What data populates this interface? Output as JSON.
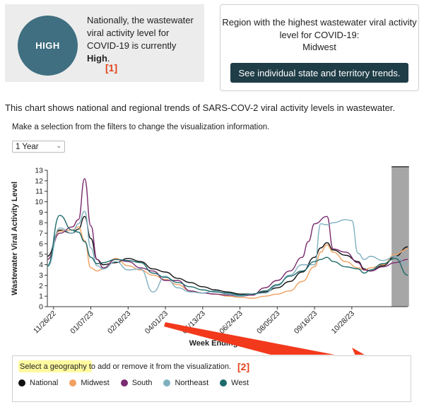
{
  "summary": {
    "level": "HIGH",
    "text_prefix": "Nationally, the wastewater viral activity level for COVID-19 is currently",
    "text_level": "High",
    "text_suffix": ".",
    "annotation": "[1]"
  },
  "region": {
    "text": "Region with the highest wastewater viral activity level for COVID-19:",
    "name": "Midwest",
    "button": "See individual state and territory trends."
  },
  "chart_desc": "This chart shows national and regional trends of SARS-COV-2 viral activity levels in wastewater.",
  "filter_text": "Make a selection from the filters to change the visualization information.",
  "period": "1 Year",
  "legend": {
    "hint": "Select a geography to add or remove it from the visualization.",
    "annotation": "[2]",
    "items": [
      {
        "label": "National",
        "color": "#111111"
      },
      {
        "label": "Midwest",
        "color": "#f0a060"
      },
      {
        "label": "South",
        "color": "#7a2a6e"
      },
      {
        "label": "Northeast",
        "color": "#7fb0c0"
      },
      {
        "label": "West",
        "color": "#1e6b6b"
      }
    ]
  },
  "chart_data": {
    "type": "line",
    "ylabel": "Wastewater Viral Activity Level",
    "xlabel": "Week Ending",
    "ylim": [
      0,
      13
    ],
    "yticks": [
      0,
      1,
      2,
      3,
      4,
      5,
      6,
      7,
      8,
      9,
      10,
      11,
      12,
      13
    ],
    "x_start": "11/26/22",
    "x_end": "11/25/23",
    "xticks": [
      "11/26/22",
      "01/07/23",
      "02/18/23",
      "04/01/23",
      "05/13/23",
      "06/24/23",
      "08/05/23",
      "09/16/23",
      "10/28/23"
    ],
    "highlight_band": "last week",
    "series": [
      {
        "name": "National",
        "color": "#111111",
        "values": [
          [
            0,
            4.8
          ],
          [
            2,
            7.3
          ],
          [
            4,
            7.0
          ],
          [
            5,
            7.4
          ],
          [
            6,
            8.6
          ],
          [
            7,
            6.5
          ],
          [
            8,
            4.5
          ],
          [
            9,
            4.0
          ],
          [
            11,
            4.2
          ],
          [
            13,
            4.6
          ],
          [
            15,
            4.3
          ],
          [
            17,
            3.6
          ],
          [
            19,
            3.3
          ],
          [
            21,
            2.7
          ],
          [
            23,
            2.3
          ],
          [
            25,
            1.9
          ],
          [
            27,
            1.6
          ],
          [
            29,
            1.4
          ],
          [
            31,
            1.2
          ],
          [
            33,
            1.2
          ],
          [
            35,
            1.4
          ],
          [
            37,
            1.8
          ],
          [
            39,
            2.4
          ],
          [
            41,
            3.3
          ],
          [
            43,
            4.7
          ],
          [
            44,
            5.6
          ],
          [
            45,
            6.1
          ],
          [
            46,
            5.4
          ],
          [
            48,
            4.9
          ],
          [
            50,
            4.3
          ],
          [
            51,
            3.6
          ],
          [
            52,
            3.4
          ],
          [
            54,
            3.9
          ],
          [
            56,
            4.8
          ],
          [
            58,
            5.7
          ]
        ]
      },
      {
        "name": "Midwest",
        "color": "#f0a060",
        "values": [
          [
            0,
            4.5
          ],
          [
            2,
            7.2
          ],
          [
            4,
            7.3
          ],
          [
            5,
            7.6
          ],
          [
            6,
            6.3
          ],
          [
            7,
            3.7
          ],
          [
            8,
            3.4
          ],
          [
            9,
            3.6
          ],
          [
            11,
            4.6
          ],
          [
            13,
            3.9
          ],
          [
            15,
            3.5
          ],
          [
            17,
            3.0
          ],
          [
            19,
            2.6
          ],
          [
            21,
            2.1
          ],
          [
            23,
            1.5
          ],
          [
            25,
            1.3
          ],
          [
            27,
            1.2
          ],
          [
            29,
            1.0
          ],
          [
            31,
            0.9
          ],
          [
            33,
            0.8
          ],
          [
            35,
            1.0
          ],
          [
            37,
            1.2
          ],
          [
            39,
            1.5
          ],
          [
            41,
            2.4
          ],
          [
            43,
            3.8
          ],
          [
            44,
            5.2
          ],
          [
            45,
            5.9
          ],
          [
            46,
            5.2
          ],
          [
            48,
            4.3
          ],
          [
            50,
            3.7
          ],
          [
            51,
            3.5
          ],
          [
            52,
            3.7
          ],
          [
            54,
            4.0
          ],
          [
            56,
            5.0
          ],
          [
            58,
            5.5
          ]
        ]
      },
      {
        "name": "South",
        "color": "#7a2a6e",
        "values": [
          [
            0,
            4.5
          ],
          [
            2,
            7.0
          ],
          [
            4,
            7.6
          ],
          [
            5,
            8.3
          ],
          [
            6,
            12.2
          ],
          [
            7,
            7.7
          ],
          [
            8,
            4.5
          ],
          [
            9,
            3.7
          ],
          [
            11,
            4.5
          ],
          [
            13,
            4.3
          ],
          [
            15,
            3.7
          ],
          [
            17,
            3.4
          ],
          [
            19,
            2.5
          ],
          [
            21,
            2.5
          ],
          [
            23,
            1.5
          ],
          [
            25,
            1.3
          ],
          [
            27,
            1.2
          ],
          [
            29,
            1.1
          ],
          [
            31,
            1.0
          ],
          [
            33,
            1.1
          ],
          [
            35,
            1.8
          ],
          [
            37,
            2.5
          ],
          [
            39,
            3.4
          ],
          [
            41,
            4.7
          ],
          [
            42,
            6.2
          ],
          [
            43,
            7.9
          ],
          [
            45,
            8.6
          ],
          [
            46,
            5.5
          ],
          [
            48,
            5.2
          ],
          [
            50,
            4.2
          ],
          [
            51,
            3.5
          ],
          [
            52,
            3.4
          ],
          [
            54,
            3.8
          ],
          [
            56,
            4.2
          ],
          [
            58,
            4.5
          ]
        ]
      },
      {
        "name": "Northeast",
        "color": "#7fb0c0",
        "values": [
          [
            0,
            3.8
          ],
          [
            2,
            7.5
          ],
          [
            4,
            7.0
          ],
          [
            5,
            7.9
          ],
          [
            6,
            9.1
          ],
          [
            7,
            5.6
          ],
          [
            8,
            3.9
          ],
          [
            9,
            3.6
          ],
          [
            11,
            4.3
          ],
          [
            13,
            3.5
          ],
          [
            15,
            3.6
          ],
          [
            17,
            1.4
          ],
          [
            19,
            2.9
          ],
          [
            21,
            1.8
          ],
          [
            23,
            1.4
          ],
          [
            25,
            1.3
          ],
          [
            27,
            1.5
          ],
          [
            29,
            1.2
          ],
          [
            31,
            1.0
          ],
          [
            33,
            1.2
          ],
          [
            35,
            1.3
          ],
          [
            37,
            2.0
          ],
          [
            39,
            3.0
          ],
          [
            41,
            4.0
          ],
          [
            43,
            4.0
          ],
          [
            44,
            7.9
          ],
          [
            45,
            7.8
          ],
          [
            46,
            8.0
          ],
          [
            48,
            8.3
          ],
          [
            49,
            8.2
          ],
          [
            50,
            5.1
          ],
          [
            51,
            4.5
          ],
          [
            52,
            4.8
          ],
          [
            54,
            4.4
          ],
          [
            56,
            4.8
          ],
          [
            58,
            4.0
          ]
        ]
      },
      {
        "name": "West",
        "color": "#1e6b6b",
        "values": [
          [
            0,
            3.9
          ],
          [
            2,
            8.7
          ],
          [
            4,
            7.3
          ],
          [
            5,
            7.1
          ],
          [
            6,
            6.2
          ],
          [
            7,
            4.7
          ],
          [
            8,
            4.1
          ],
          [
            9,
            4.2
          ],
          [
            11,
            4.5
          ],
          [
            13,
            4.4
          ],
          [
            15,
            4.2
          ],
          [
            17,
            3.2
          ],
          [
            19,
            2.8
          ],
          [
            21,
            2.3
          ],
          [
            23,
            1.9
          ],
          [
            25,
            1.6
          ],
          [
            27,
            1.4
          ],
          [
            29,
            1.3
          ],
          [
            31,
            1.1
          ],
          [
            33,
            1.2
          ],
          [
            35,
            1.5
          ],
          [
            37,
            2.1
          ],
          [
            39,
            2.9
          ],
          [
            41,
            3.4
          ],
          [
            43,
            4.3
          ],
          [
            44,
            4.5
          ],
          [
            45,
            4.7
          ],
          [
            46,
            4.3
          ],
          [
            48,
            3.8
          ],
          [
            50,
            3.6
          ],
          [
            51,
            3.2
          ],
          [
            52,
            3.5
          ],
          [
            54,
            4.1
          ],
          [
            56,
            4.6
          ],
          [
            58,
            3.0
          ]
        ]
      }
    ]
  }
}
